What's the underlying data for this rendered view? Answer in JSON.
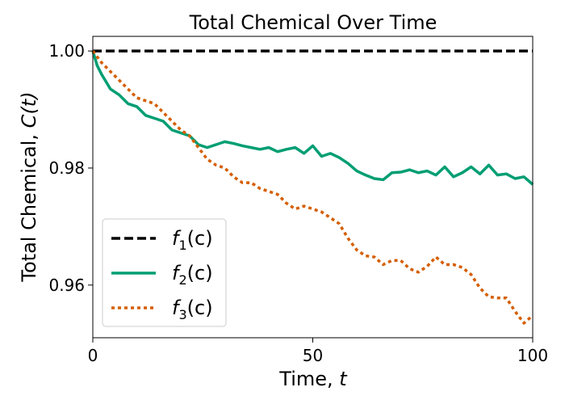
{
  "chart_data": {
    "type": "line",
    "title": "Total Chemical Over Time",
    "xlabel": "Time, ",
    "xlabel_var": "t",
    "ylabel": "Total Chemical, ",
    "ylabel_var": "C(t)",
    "xlim": [
      0,
      100
    ],
    "ylim": [
      0.951,
      1.0025
    ],
    "xticks": [
      0,
      50,
      100
    ],
    "xtick_labels": [
      "0",
      "50",
      "100"
    ],
    "yticks": [
      0.96,
      0.98,
      1.0
    ],
    "ytick_labels": [
      "0.96",
      "0.98",
      "1.00"
    ],
    "grid": false,
    "legend_position": "lower-left",
    "series": [
      {
        "name": "f1(c)",
        "legend_fn": "f",
        "legend_sub": "1",
        "legend_arg": "(c)",
        "color": "#000000",
        "style": "dashed",
        "x": [
          0,
          100
        ],
        "y": [
          1.0,
          1.0
        ]
      },
      {
        "name": "f2(c)",
        "legend_fn": "f",
        "legend_sub": "2",
        "legend_arg": "(c)",
        "color": "#009e73",
        "style": "solid",
        "x": [
          0,
          1,
          2,
          4,
          6,
          8,
          10,
          12,
          14,
          16,
          18,
          20,
          22,
          24,
          26,
          28,
          30,
          32,
          34,
          36,
          38,
          40,
          42,
          44,
          46,
          48,
          50,
          52,
          54,
          56,
          58,
          60,
          62,
          64,
          66,
          68,
          70,
          72,
          74,
          76,
          78,
          80,
          82,
          84,
          86,
          88,
          90,
          92,
          94,
          96,
          98,
          100
        ],
        "y": [
          1.0,
          0.9975,
          0.996,
          0.9935,
          0.9925,
          0.991,
          0.9905,
          0.989,
          0.9885,
          0.988,
          0.9865,
          0.986,
          0.9855,
          0.984,
          0.9835,
          0.984,
          0.9845,
          0.9842,
          0.9838,
          0.9835,
          0.9832,
          0.9835,
          0.9828,
          0.9832,
          0.9835,
          0.9825,
          0.9838,
          0.982,
          0.9825,
          0.9818,
          0.9808,
          0.9795,
          0.9788,
          0.9782,
          0.978,
          0.9792,
          0.9793,
          0.9797,
          0.9792,
          0.9795,
          0.9788,
          0.9802,
          0.9785,
          0.9792,
          0.9802,
          0.979,
          0.9805,
          0.9788,
          0.979,
          0.9782,
          0.9785,
          0.9772
        ]
      },
      {
        "name": "f3(c)",
        "legend_fn": "f",
        "legend_sub": "3",
        "legend_arg": "(c)",
        "color": "#d55e00",
        "style": "dotted",
        "x": [
          0,
          2,
          4,
          6,
          8,
          10,
          12,
          14,
          16,
          18,
          20,
          22,
          24,
          26,
          28,
          30,
          32,
          34,
          36,
          38,
          40,
          42,
          44,
          46,
          48,
          50,
          52,
          54,
          56,
          58,
          60,
          62,
          64,
          66,
          68,
          70,
          72,
          74,
          76,
          78,
          80,
          82,
          84,
          86,
          88,
          90,
          92,
          94,
          96,
          98,
          100
        ],
        "y": [
          1.0,
          0.998,
          0.9965,
          0.995,
          0.9935,
          0.992,
          0.9915,
          0.991,
          0.9895,
          0.988,
          0.9865,
          0.9855,
          0.9835,
          0.9815,
          0.9805,
          0.98,
          0.9785,
          0.9775,
          0.9775,
          0.9765,
          0.976,
          0.9755,
          0.974,
          0.973,
          0.9735,
          0.973,
          0.9725,
          0.9715,
          0.9705,
          0.968,
          0.966,
          0.965,
          0.9648,
          0.9635,
          0.9642,
          0.9642,
          0.9628,
          0.9622,
          0.9632,
          0.9648,
          0.9635,
          0.9635,
          0.963,
          0.9618,
          0.9595,
          0.958,
          0.9578,
          0.9578,
          0.9555,
          0.9535,
          0.9548
        ]
      }
    ]
  }
}
